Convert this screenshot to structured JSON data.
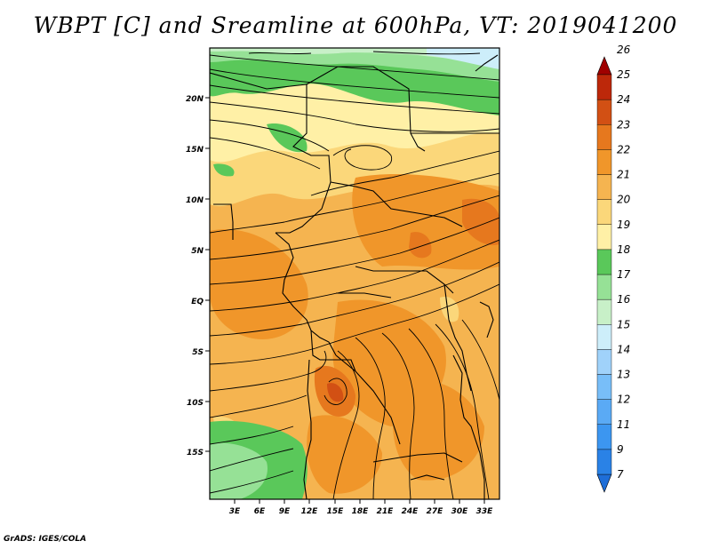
{
  "title": "WBPT [C] and Sreamline at 600hPa, VT: 2019041200",
  "credit": "GrADS: IGES/COLA",
  "map": {
    "lat_ticks": [
      "20N",
      "15N",
      "10N",
      "5N",
      "EQ",
      "5S",
      "10S",
      "15S"
    ],
    "lon_ticks": [
      "3E",
      "6E",
      "9E",
      "12E",
      "15E",
      "18E",
      "21E",
      "24E",
      "27E",
      "30E",
      "33E"
    ]
  },
  "colorbar": {
    "labels": [
      "7",
      "9",
      "11",
      "12",
      "13",
      "14",
      "15",
      "16",
      "17",
      "18",
      "19",
      "20",
      "21",
      "22",
      "23",
      "24",
      "25",
      "26"
    ],
    "colors": [
      "#1e6ed8",
      "#2a82e6",
      "#3c96f0",
      "#5aaaf5",
      "#78bef8",
      "#a0d2fa",
      "#cdeefa",
      "#c8f0c8",
      "#96e196",
      "#5ac85a",
      "#fff0a6",
      "#fbd77a",
      "#f5b450",
      "#f0962a",
      "#e6781e",
      "#d25014",
      "#bd280a",
      "#a00000"
    ]
  }
}
